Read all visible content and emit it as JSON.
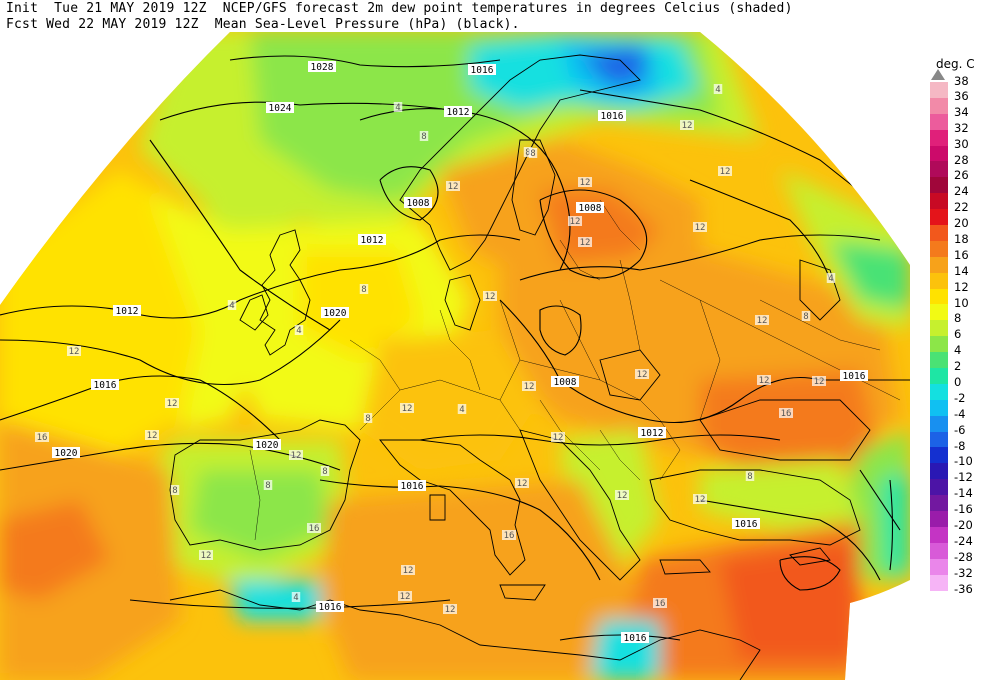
{
  "header": {
    "line1": "Init  Tue 21 MAY 2019 12Z  NCEP/GFS forecast 2m dew point temperatures in degrees Celcius (shaded)",
    "line2": "Fcst Wed 22 MAY 2019 12Z  Mean Sea-Level Pressure (hPa) (black)."
  },
  "legend": {
    "unit": "deg. C",
    "top_label": "38",
    "bins": [
      {
        "label": "36",
        "color": "#f5b8c4"
      },
      {
        "label": "34",
        "color": "#f28aa8"
      },
      {
        "label": "32",
        "color": "#ec5c9c"
      },
      {
        "label": "30",
        "color": "#e0207a"
      },
      {
        "label": "28",
        "color": "#cc0a6a"
      },
      {
        "label": "26",
        "color": "#b00a5a"
      },
      {
        "label": "24",
        "color": "#a0063a"
      },
      {
        "label": "22",
        "color": "#c80a24"
      },
      {
        "label": "20",
        "color": "#e4141a"
      },
      {
        "label": "18",
        "color": "#f2581c"
      },
      {
        "label": "16",
        "color": "#f47a1c"
      },
      {
        "label": "14",
        "color": "#f7a21a"
      },
      {
        "label": "12",
        "color": "#fcc20c"
      },
      {
        "label": "10",
        "color": "#ffe200"
      },
      {
        "label": "8",
        "color": "#f2fa14"
      },
      {
        "label": "6",
        "color": "#c6f02e"
      },
      {
        "label": "4",
        "color": "#8ce648"
      },
      {
        "label": "2",
        "color": "#4ae274"
      },
      {
        "label": "0",
        "color": "#1ee6a4"
      },
      {
        "label": "-2",
        "color": "#14e0e0"
      },
      {
        "label": "-4",
        "color": "#10c0f2"
      },
      {
        "label": "-6",
        "color": "#1890f0"
      },
      {
        "label": "-8",
        "color": "#1c62e6"
      },
      {
        "label": "-10",
        "color": "#1430d0"
      },
      {
        "label": "-12",
        "color": "#2a18b4"
      },
      {
        "label": "-14",
        "color": "#4c14a6"
      },
      {
        "label": "-16",
        "color": "#7218a0"
      },
      {
        "label": "-20",
        "color": "#9a1caa"
      },
      {
        "label": "-24",
        "color": "#c434c4"
      },
      {
        "label": "-28",
        "color": "#d85ad8"
      },
      {
        "label": "-32",
        "color": "#ea86ea"
      },
      {
        "label": "-36",
        "color": "#f6b4f6"
      }
    ]
  },
  "isobars": [
    {
      "label": "1028"
    },
    {
      "label": "1024"
    },
    {
      "label": "1020"
    },
    {
      "label": "1016"
    },
    {
      "label": "1012"
    },
    {
      "label": "1012"
    },
    {
      "label": "1008"
    },
    {
      "label": "1008"
    },
    {
      "label": "1008"
    },
    {
      "label": "1016"
    },
    {
      "label": "1020"
    },
    {
      "label": "1020"
    },
    {
      "label": "1016"
    },
    {
      "label": "1016"
    },
    {
      "label": "1016"
    },
    {
      "label": "1012"
    },
    {
      "label": "1016"
    },
    {
      "label": "1016"
    },
    {
      "label": "1012"
    },
    {
      "label": "1016"
    }
  ],
  "dewpoint_labels": [
    "4",
    "8",
    "12",
    "12",
    "8",
    "12",
    "12",
    "4",
    "8",
    "12",
    "12",
    "16",
    "12",
    "8",
    "12",
    "12",
    "16",
    "12",
    "4",
    "12",
    "12",
    "8",
    "4",
    "16",
    "12",
    "12",
    "12",
    "8",
    "12",
    "8",
    "12",
    "4",
    "12",
    "12",
    "16",
    "12",
    "4",
    "8",
    "12",
    "12",
    "8",
    "12",
    "16",
    "8",
    "4",
    "12",
    "12",
    "12"
  ]
}
